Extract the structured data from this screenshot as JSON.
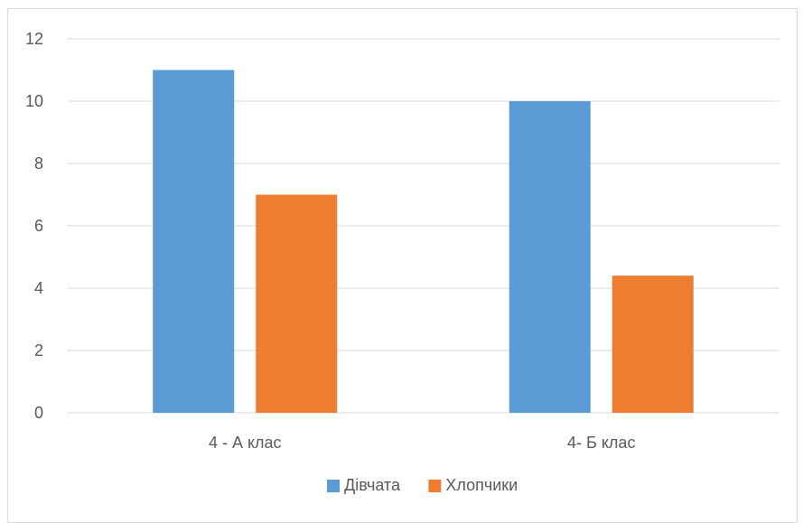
{
  "chart_data": {
    "type": "bar",
    "title": "",
    "xlabel": "",
    "ylabel": "",
    "categories": [
      "4 - А клас",
      "4- Б клас"
    ],
    "series": [
      {
        "name": "Дівчата",
        "values": [
          11,
          10
        ],
        "color": "#5b9bd5"
      },
      {
        "name": "Хлопчики",
        "values": [
          7,
          4.4
        ],
        "color": "#ed7d31"
      }
    ],
    "ylim": [
      0,
      12
    ],
    "yticks": [
      0,
      2,
      4,
      6,
      8,
      10,
      12
    ],
    "ytick_labels": [
      "0",
      "2",
      "4",
      "6",
      "8",
      "10",
      "12"
    ],
    "grid": true,
    "legend_position": "bottom"
  }
}
